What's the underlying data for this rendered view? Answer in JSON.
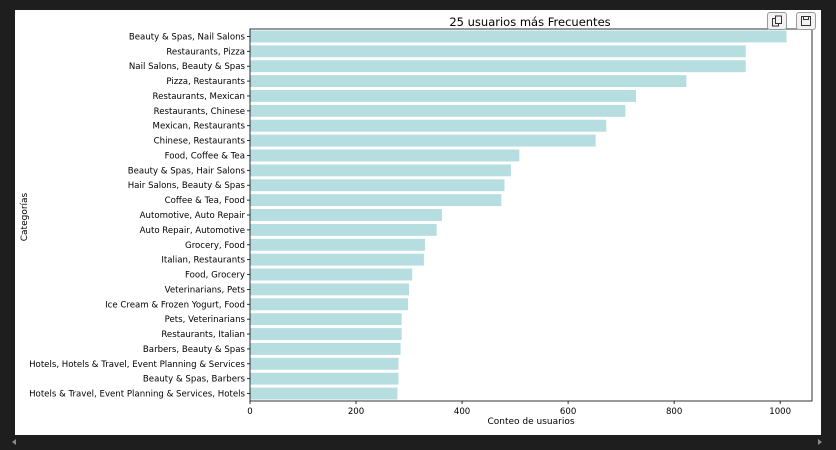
{
  "colors": {
    "bar": "#b6dde0",
    "axis": "#000000",
    "background": "#ffffff"
  },
  "toolbar": {
    "icons": [
      "copy-icon",
      "save-icon"
    ]
  },
  "chart_data": {
    "type": "bar",
    "orientation": "horizontal",
    "title": "25 usuarios más Frecuentes",
    "xlabel": "Conteo de usuarios",
    "ylabel": "Categorías",
    "xlim": [
      0,
      1060
    ],
    "xticks": [
      0,
      200,
      400,
      600,
      800,
      1000
    ],
    "grid": false,
    "categories": [
      "Beauty & Spas, Nail Salons",
      "Restaurants, Pizza",
      "Nail Salons, Beauty & Spas",
      "Pizza, Restaurants",
      "Restaurants, Mexican",
      "Restaurants, Chinese",
      "Mexican, Restaurants",
      "Chinese, Restaurants",
      "Food, Coffee & Tea",
      "Beauty & Spas, Hair Salons",
      "Hair Salons, Beauty & Spas",
      "Coffee & Tea, Food",
      "Automotive, Auto Repair",
      "Auto Repair, Automotive",
      "Grocery, Food",
      "Italian, Restaurants",
      "Food, Grocery",
      "Veterinarians, Pets",
      "Ice Cream & Frozen Yogurt, Food",
      "Pets, Veterinarians",
      "Restaurants, Italian",
      "Barbers, Beauty & Spas",
      "Hotels, Hotels & Travel, Event Planning & Services",
      "Beauty & Spas, Barbers",
      "Hotels & Travel, Event Planning & Services, Hotels"
    ],
    "values": [
      1012,
      935,
      935,
      823,
      728,
      708,
      672,
      652,
      508,
      492,
      480,
      474,
      362,
      352,
      330,
      328,
      306,
      300,
      298,
      286,
      286,
      284,
      280,
      280,
      278
    ]
  }
}
